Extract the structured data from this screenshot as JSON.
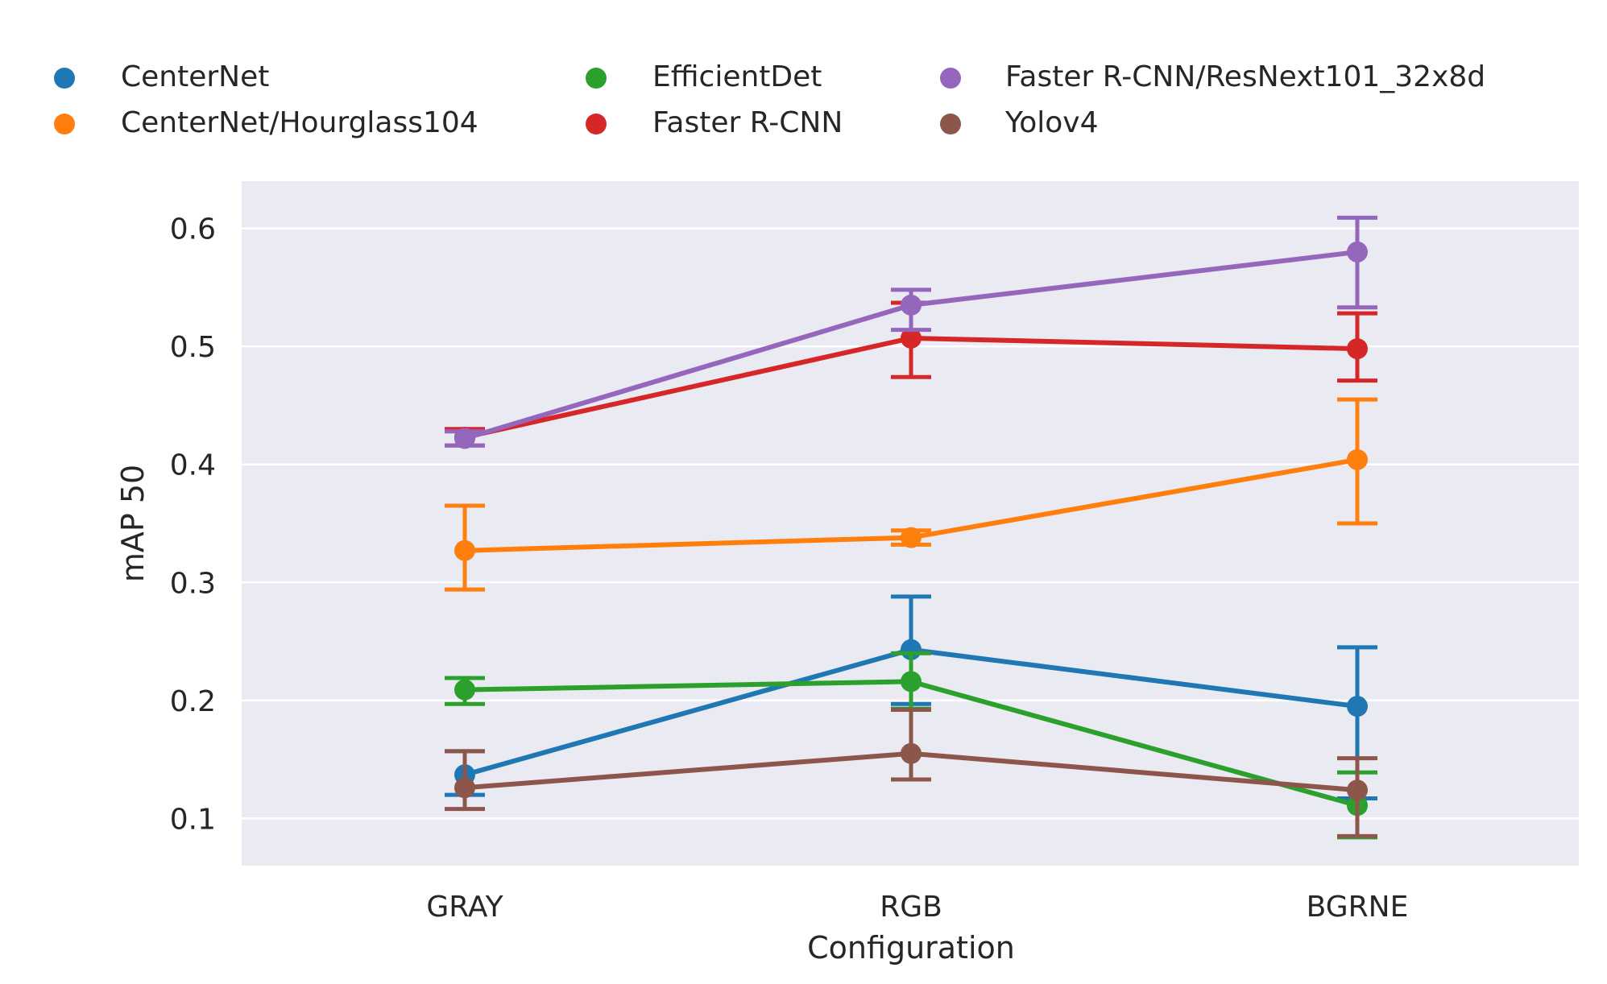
{
  "chart_data": {
    "type": "line",
    "title": "",
    "xlabel": "Configuration",
    "ylabel": "mAP 50",
    "categories": [
      "GRAY",
      "RGB",
      "BGRNE"
    ],
    "ylim": [
      0.06,
      0.64
    ],
    "yticks": [
      0.1,
      0.2,
      0.3,
      0.4,
      0.5,
      0.6
    ],
    "ytick_labels": [
      "0.1",
      "0.2",
      "0.3",
      "0.4",
      "0.5",
      "0.6"
    ],
    "grid": true,
    "legend_position": "top",
    "series": [
      {
        "name": "CenterNet",
        "color": "#1f77b4",
        "values": [
          0.137,
          0.243,
          0.195
        ],
        "err_low": [
          0.12,
          0.197,
          0.117
        ],
        "err_high": [
          0.157,
          0.288,
          0.245
        ]
      },
      {
        "name": "CenterNet/Hourglass104",
        "color": "#ff7f0e",
        "values": [
          0.327,
          0.338,
          0.404
        ],
        "err_low": [
          0.294,
          0.332,
          0.35
        ],
        "err_high": [
          0.365,
          0.344,
          0.455
        ]
      },
      {
        "name": "EfficientDet",
        "color": "#2ca02c",
        "values": [
          0.209,
          0.216,
          0.111
        ],
        "err_low": [
          0.197,
          0.193,
          0.084
        ],
        "err_high": [
          0.219,
          0.24,
          0.139
        ]
      },
      {
        "name": "Faster R-CNN",
        "color": "#d62728",
        "values": [
          0.423,
          0.507,
          0.498
        ],
        "err_low": [
          0.416,
          0.474,
          0.471
        ],
        "err_high": [
          0.43,
          0.537,
          0.528
        ]
      },
      {
        "name": "Faster R-CNN/ResNext101_32x8d",
        "color": "#9467bd",
        "values": [
          0.422,
          0.535,
          0.58
        ],
        "err_low": [
          0.416,
          0.514,
          0.533
        ],
        "err_high": [
          0.428,
          0.548,
          0.609
        ]
      },
      {
        "name": "Yolov4",
        "color": "#8c564b",
        "values": [
          0.126,
          0.155,
          0.124
        ],
        "err_low": [
          0.108,
          0.133,
          0.085
        ],
        "err_high": [
          0.157,
          0.192,
          0.151
        ]
      }
    ]
  }
}
